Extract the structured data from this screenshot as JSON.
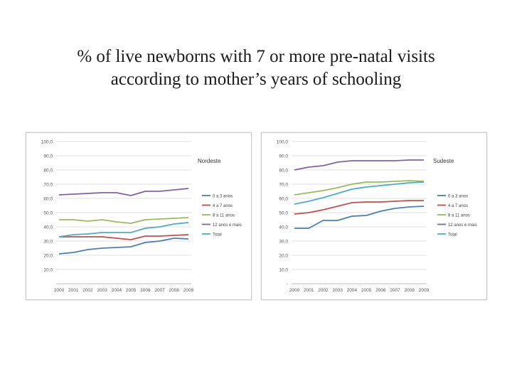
{
  "slide": {
    "title_line1": "% of live newborns with 7 or more pre-natal visits",
    "title_line2": "according to mother’s years of schooling"
  },
  "colors": {
    "0 a 3 anos": "#4a7eb5",
    "4 a 7 anos": "#c0504d",
    "8 a 11 anos": "#9bbb59",
    "12 anos e mais": "#8064a2",
    "Total": "#4bacc6"
  },
  "chart_data": [
    {
      "type": "line",
      "title": "Nordeste",
      "x": [
        "2000",
        "2001",
        "2002",
        "2003",
        "2004",
        "2005",
        "2006",
        "2007",
        "2008",
        "2009"
      ],
      "y_ticks": [
        "",
        "10,0",
        "20,0",
        "30,0",
        "40,0",
        "50,0",
        "60,0",
        "70,0",
        "80,0",
        "90,0",
        "100,0"
      ],
      "ylim": [
        0,
        100
      ],
      "grid": true,
      "legend_position": "right",
      "series": [
        {
          "name": "0 a 3 anos",
          "values": [
            21,
            22,
            24,
            25,
            25.5,
            26,
            29,
            30,
            32,
            31.5
          ]
        },
        {
          "name": "4 a 7 anos",
          "values": [
            33,
            33,
            33,
            33,
            32,
            31,
            33.5,
            33.5,
            34,
            34.5
          ]
        },
        {
          "name": "8 a 11 anos",
          "values": [
            45,
            45,
            44,
            45,
            43.5,
            42.5,
            45,
            45.5,
            46,
            46.5
          ]
        },
        {
          "name": "12 anos e mais",
          "values": [
            62.5,
            63,
            63.5,
            64,
            64,
            62,
            65,
            65,
            66,
            67
          ]
        },
        {
          "name": "Total",
          "values": [
            33,
            34.5,
            35,
            36,
            36,
            36,
            39,
            40,
            42,
            43
          ]
        }
      ]
    },
    {
      "type": "line",
      "title": "Sudeste",
      "x": [
        "2000",
        "2001",
        "2002",
        "2003",
        "2004",
        "2005",
        "2006",
        "2007",
        "2008",
        "2009"
      ],
      "y_ticks": [
        "-",
        "10,0",
        "20,0",
        "30,0",
        "40,0",
        "50,0",
        "60,0",
        "70,0",
        "80,0",
        "90,0",
        "100,0"
      ],
      "ylim": [
        0,
        100
      ],
      "grid": true,
      "legend_position": "right",
      "series": [
        {
          "name": "0 a 3 anos",
          "values": [
            39,
            39,
            44.5,
            44.5,
            47.5,
            48,
            51,
            53,
            54,
            54.5
          ]
        },
        {
          "name": "4 a 7 anos",
          "values": [
            49,
            50,
            52,
            54.5,
            57,
            57.5,
            57.5,
            58,
            58.5,
            58.5
          ]
        },
        {
          "name": "8 a 11 anos",
          "values": [
            62.5,
            64,
            65.5,
            67.5,
            70,
            71.5,
            71.5,
            72,
            72.5,
            72
          ]
        },
        {
          "name": "12 anos e mais",
          "values": [
            80,
            82,
            83,
            85.5,
            86.5,
            86.5,
            86.5,
            86.5,
            87,
            87
          ]
        },
        {
          "name": "Total",
          "values": [
            56,
            58,
            60.5,
            63.5,
            66.5,
            68,
            69,
            70,
            71,
            71.5
          ]
        }
      ]
    }
  ]
}
